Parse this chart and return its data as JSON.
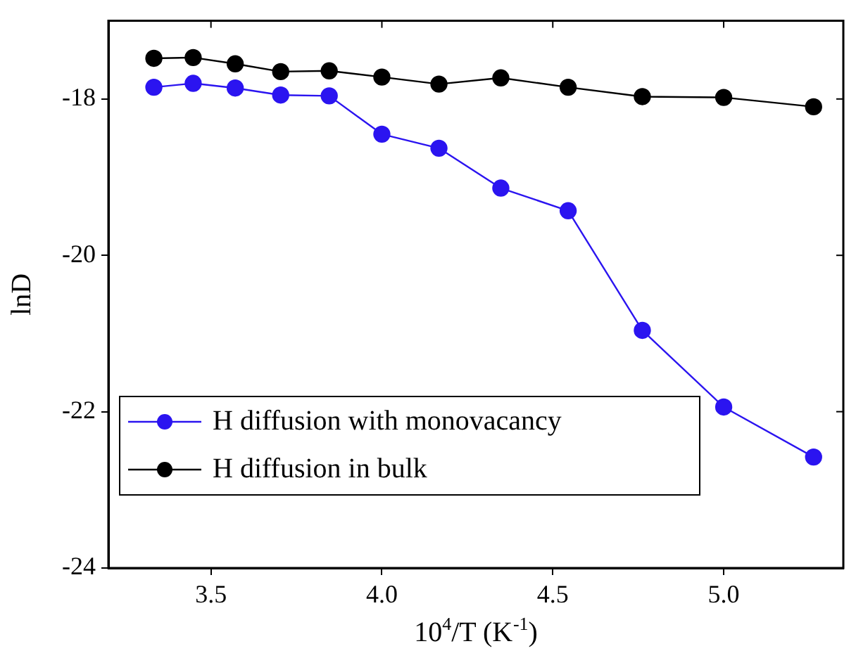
{
  "chart_data": {
    "type": "line",
    "xlabel": "10$^{4}$/T (K$^{-1}$)",
    "ylabel": "lnD",
    "xlim": [
      3.2,
      5.35
    ],
    "xticks": [
      {
        "value": 3.5,
        "label": "3.5"
      },
      {
        "value": 4.0,
        "label": "4.0"
      },
      {
        "value": 4.5,
        "label": "4.5"
      },
      {
        "value": 5.0,
        "label": "5.0"
      }
    ],
    "ylim": [
      -24,
      -17
    ],
    "yticks": [
      -24,
      -22,
      -20,
      -18
    ],
    "x": [
      3.333,
      3.448,
      3.571,
      3.704,
      3.846,
      4.0,
      4.167,
      4.348,
      4.545,
      4.762,
      5.0,
      5.263
    ],
    "series": [
      {
        "name": "H diffusion with monovacancy",
        "color": "#2b14f0",
        "values": [
          -17.85,
          -17.8,
          -17.86,
          -17.95,
          -17.96,
          -18.45,
          -18.63,
          -19.14,
          -19.43,
          -20.96,
          -21.94,
          -22.58
        ]
      },
      {
        "name": "H diffusion in bulk",
        "color": "#000000",
        "values": [
          -17.48,
          -17.47,
          -17.55,
          -17.65,
          -17.64,
          -17.72,
          -17.81,
          -17.73,
          -17.85,
          -17.97,
          -17.98,
          -18.1
        ]
      }
    ],
    "grid": false,
    "legend": "bottom left",
    "marker": "circle",
    "line_style": "solid"
  }
}
